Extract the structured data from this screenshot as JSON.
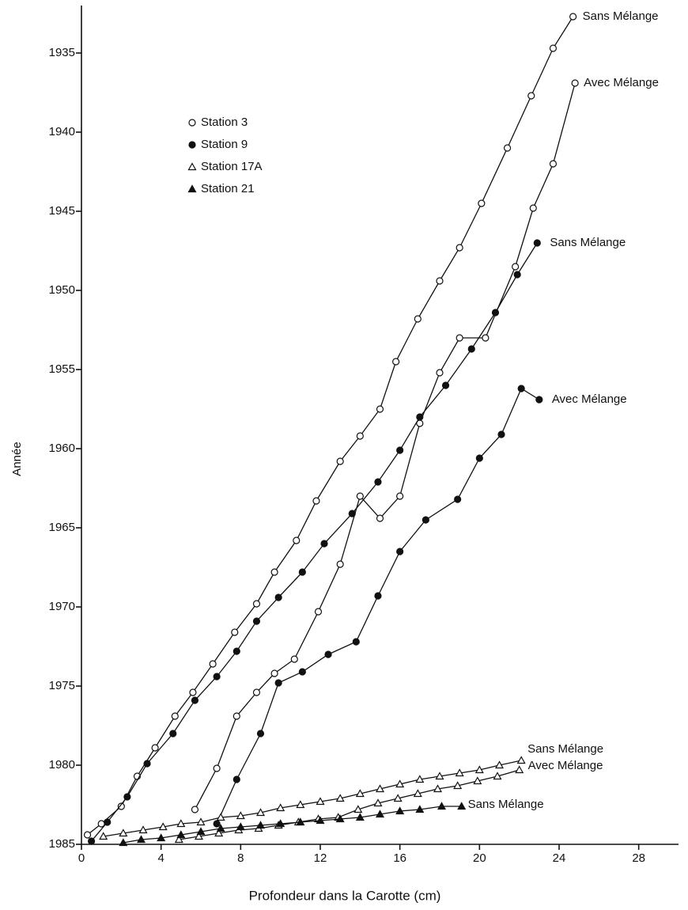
{
  "chart_data": {
    "type": "line",
    "xlabel": "Profondeur dans la Carotte (cm)",
    "ylabel": "Année",
    "xlim": [
      0,
      30
    ],
    "xticks": [
      0,
      4,
      8,
      12,
      16,
      20,
      24,
      28
    ],
    "ylim": [
      1985,
      1932
    ],
    "yticks": [
      1935,
      1940,
      1945,
      1950,
      1955,
      1960,
      1965,
      1970,
      1975,
      1980,
      1985
    ],
    "color": "#111111",
    "series": [
      {
        "name": "Station 3",
        "label": "Sans Mélange",
        "marker": "circle",
        "filled": false,
        "x": [
          0.3,
          1.0,
          2.0,
          2.8,
          3.7,
          4.7,
          5.6,
          6.6,
          7.7,
          8.8,
          9.7,
          10.8,
          11.8,
          13.0,
          14.0,
          15.0,
          15.8,
          16.9,
          18.0,
          19.0,
          20.1,
          21.4,
          22.6,
          23.7,
          24.7
        ],
        "values": [
          1984.4,
          1983.7,
          1982.6,
          1980.7,
          1978.9,
          1976.9,
          1975.4,
          1973.6,
          1971.6,
          1969.8,
          1967.8,
          1965.8,
          1963.3,
          1960.8,
          1959.2,
          1957.5,
          1954.5,
          1951.8,
          1949.4,
          1947.3,
          1944.5,
          1941.0,
          1937.7,
          1934.7,
          1932.7
        ]
      },
      {
        "name": "Station 3",
        "label": "Avec Mélange",
        "marker": "circle",
        "filled": false,
        "x": [
          5.7,
          6.8,
          7.8,
          8.8,
          9.7,
          10.7,
          11.9,
          13.0,
          14.0,
          15.0,
          16.0,
          17.0,
          18.0,
          19.0,
          20.3,
          21.8,
          22.7,
          23.7,
          24.8
        ],
        "values": [
          1982.8,
          1980.2,
          1976.9,
          1975.4,
          1974.2,
          1973.3,
          1970.3,
          1967.3,
          1963.0,
          1964.4,
          1963.0,
          1958.4,
          1955.2,
          1953.0,
          1953.0,
          1948.5,
          1944.8,
          1942.0,
          1936.9
        ]
      },
      {
        "name": "Station 9",
        "label": "Sans Mélange",
        "marker": "circle",
        "filled": true,
        "x": [
          0.5,
          1.3,
          2.3,
          3.3,
          4.6,
          5.7,
          6.8,
          7.8,
          8.8,
          9.9,
          11.1,
          12.2,
          13.6,
          14.9,
          16.0,
          17.0,
          18.3,
          19.6,
          20.8,
          21.9,
          22.9
        ],
        "values": [
          1984.8,
          1983.6,
          1982.0,
          1979.9,
          1978.0,
          1975.9,
          1974.4,
          1972.8,
          1970.9,
          1969.4,
          1967.8,
          1966.0,
          1964.1,
          1962.1,
          1960.1,
          1958.0,
          1956.0,
          1953.7,
          1951.4,
          1949.0,
          1947.0
        ]
      },
      {
        "name": "Station 9",
        "label": "Avec Mélange",
        "marker": "circle",
        "filled": true,
        "x": [
          6.8,
          7.8,
          9.0,
          9.9,
          11.1,
          12.4,
          13.8,
          14.9,
          16.0,
          17.3,
          18.9,
          20.0,
          21.1,
          22.1,
          23.0
        ],
        "values": [
          1983.7,
          1980.9,
          1978.0,
          1974.8,
          1974.1,
          1973.0,
          1972.2,
          1969.3,
          1966.5,
          1964.5,
          1963.2,
          1960.6,
          1959.1,
          1956.2,
          1956.9
        ]
      },
      {
        "name": "Station 17A",
        "label": "Sans Mélange",
        "marker": "triangle",
        "filled": false,
        "x": [
          1.1,
          2.1,
          3.1,
          4.1,
          5.0,
          6.0,
          7.0,
          8.0,
          9.0,
          10.0,
          11.0,
          12.0,
          13.0,
          14.0,
          15.0,
          16.0,
          17.0,
          18.0,
          19.0,
          20.0,
          21.0,
          22.1
        ],
        "values": [
          1984.5,
          1984.3,
          1984.1,
          1983.9,
          1983.7,
          1983.6,
          1983.3,
          1983.2,
          1983.0,
          1982.7,
          1982.5,
          1982.3,
          1982.1,
          1981.8,
          1981.5,
          1981.2,
          1980.9,
          1980.7,
          1980.5,
          1980.3,
          1980.0,
          1979.7
        ]
      },
      {
        "name": "Station 17A",
        "label": "Avec Mélange",
        "marker": "triangle",
        "filled": false,
        "x": [
          4.9,
          5.9,
          6.9,
          7.9,
          8.9,
          9.9,
          10.9,
          11.9,
          12.9,
          13.9,
          14.9,
          15.9,
          16.9,
          17.9,
          18.9,
          19.9,
          20.9,
          22.0
        ],
        "values": [
          1984.7,
          1984.5,
          1984.3,
          1984.1,
          1984.0,
          1983.8,
          1983.6,
          1983.4,
          1983.3,
          1982.8,
          1982.4,
          1982.1,
          1981.8,
          1981.5,
          1981.3,
          1981.0,
          1980.7,
          1980.3
        ]
      },
      {
        "name": "Station 21",
        "label": "Sans Mélange",
        "marker": "triangle",
        "filled": true,
        "x": [
          2.1,
          3.0,
          4.0,
          5.0,
          6.0,
          7.0,
          8.0,
          9.0,
          10.0,
          11.0,
          12.0,
          13.0,
          14.0,
          15.0,
          16.0,
          17.0,
          18.1,
          19.1
        ],
        "values": [
          1984.9,
          1984.7,
          1984.6,
          1984.4,
          1984.2,
          1984.0,
          1983.9,
          1983.8,
          1983.7,
          1983.6,
          1983.5,
          1983.4,
          1983.3,
          1983.1,
          1982.9,
          1982.8,
          1982.6,
          1982.6
        ]
      }
    ]
  }
}
